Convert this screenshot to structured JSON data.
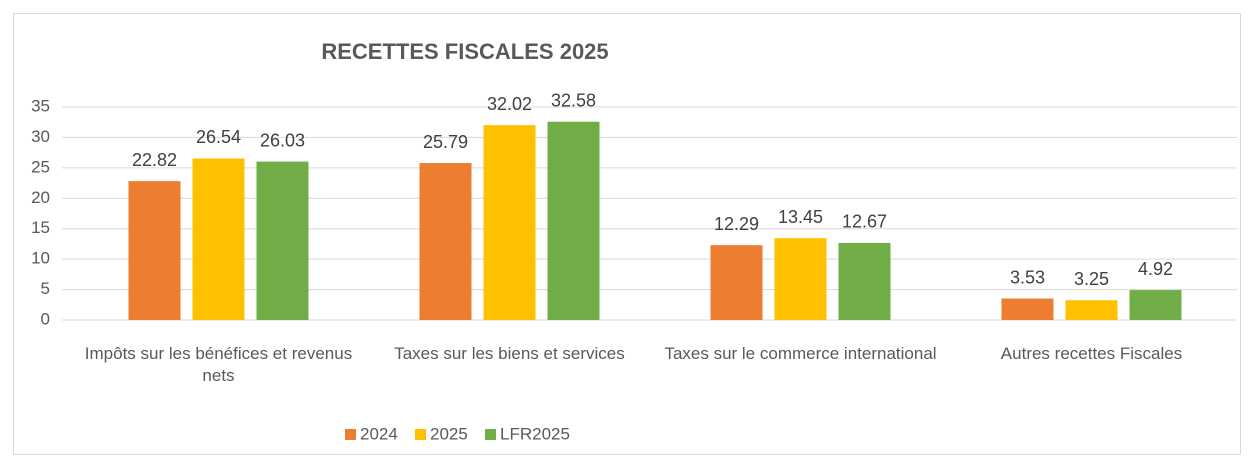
{
  "chart_data": {
    "type": "bar",
    "title": "RECETTES FISCALES 2025",
    "categories": [
      "Impôts sur les bénéfices et revenus nets",
      "Taxes sur les biens et services",
      "Taxes sur le commerce international",
      "Autres recettes Fiscales"
    ],
    "series": [
      {
        "name": "2024",
        "color": "#ed7d31",
        "values": [
          22.82,
          25.79,
          12.29,
          3.53
        ]
      },
      {
        "name": "2025",
        "color": "#ffc000",
        "values": [
          26.54,
          32.02,
          13.45,
          3.25
        ]
      },
      {
        "name": "LFR2025",
        "color": "#70ad47",
        "values": [
          26.03,
          32.58,
          12.67,
          4.92
        ]
      }
    ],
    "ylim": [
      0,
      35
    ],
    "yticks": [
      0,
      5,
      10,
      15,
      20,
      25,
      30,
      35
    ],
    "grid": true,
    "legend": "bottom"
  }
}
